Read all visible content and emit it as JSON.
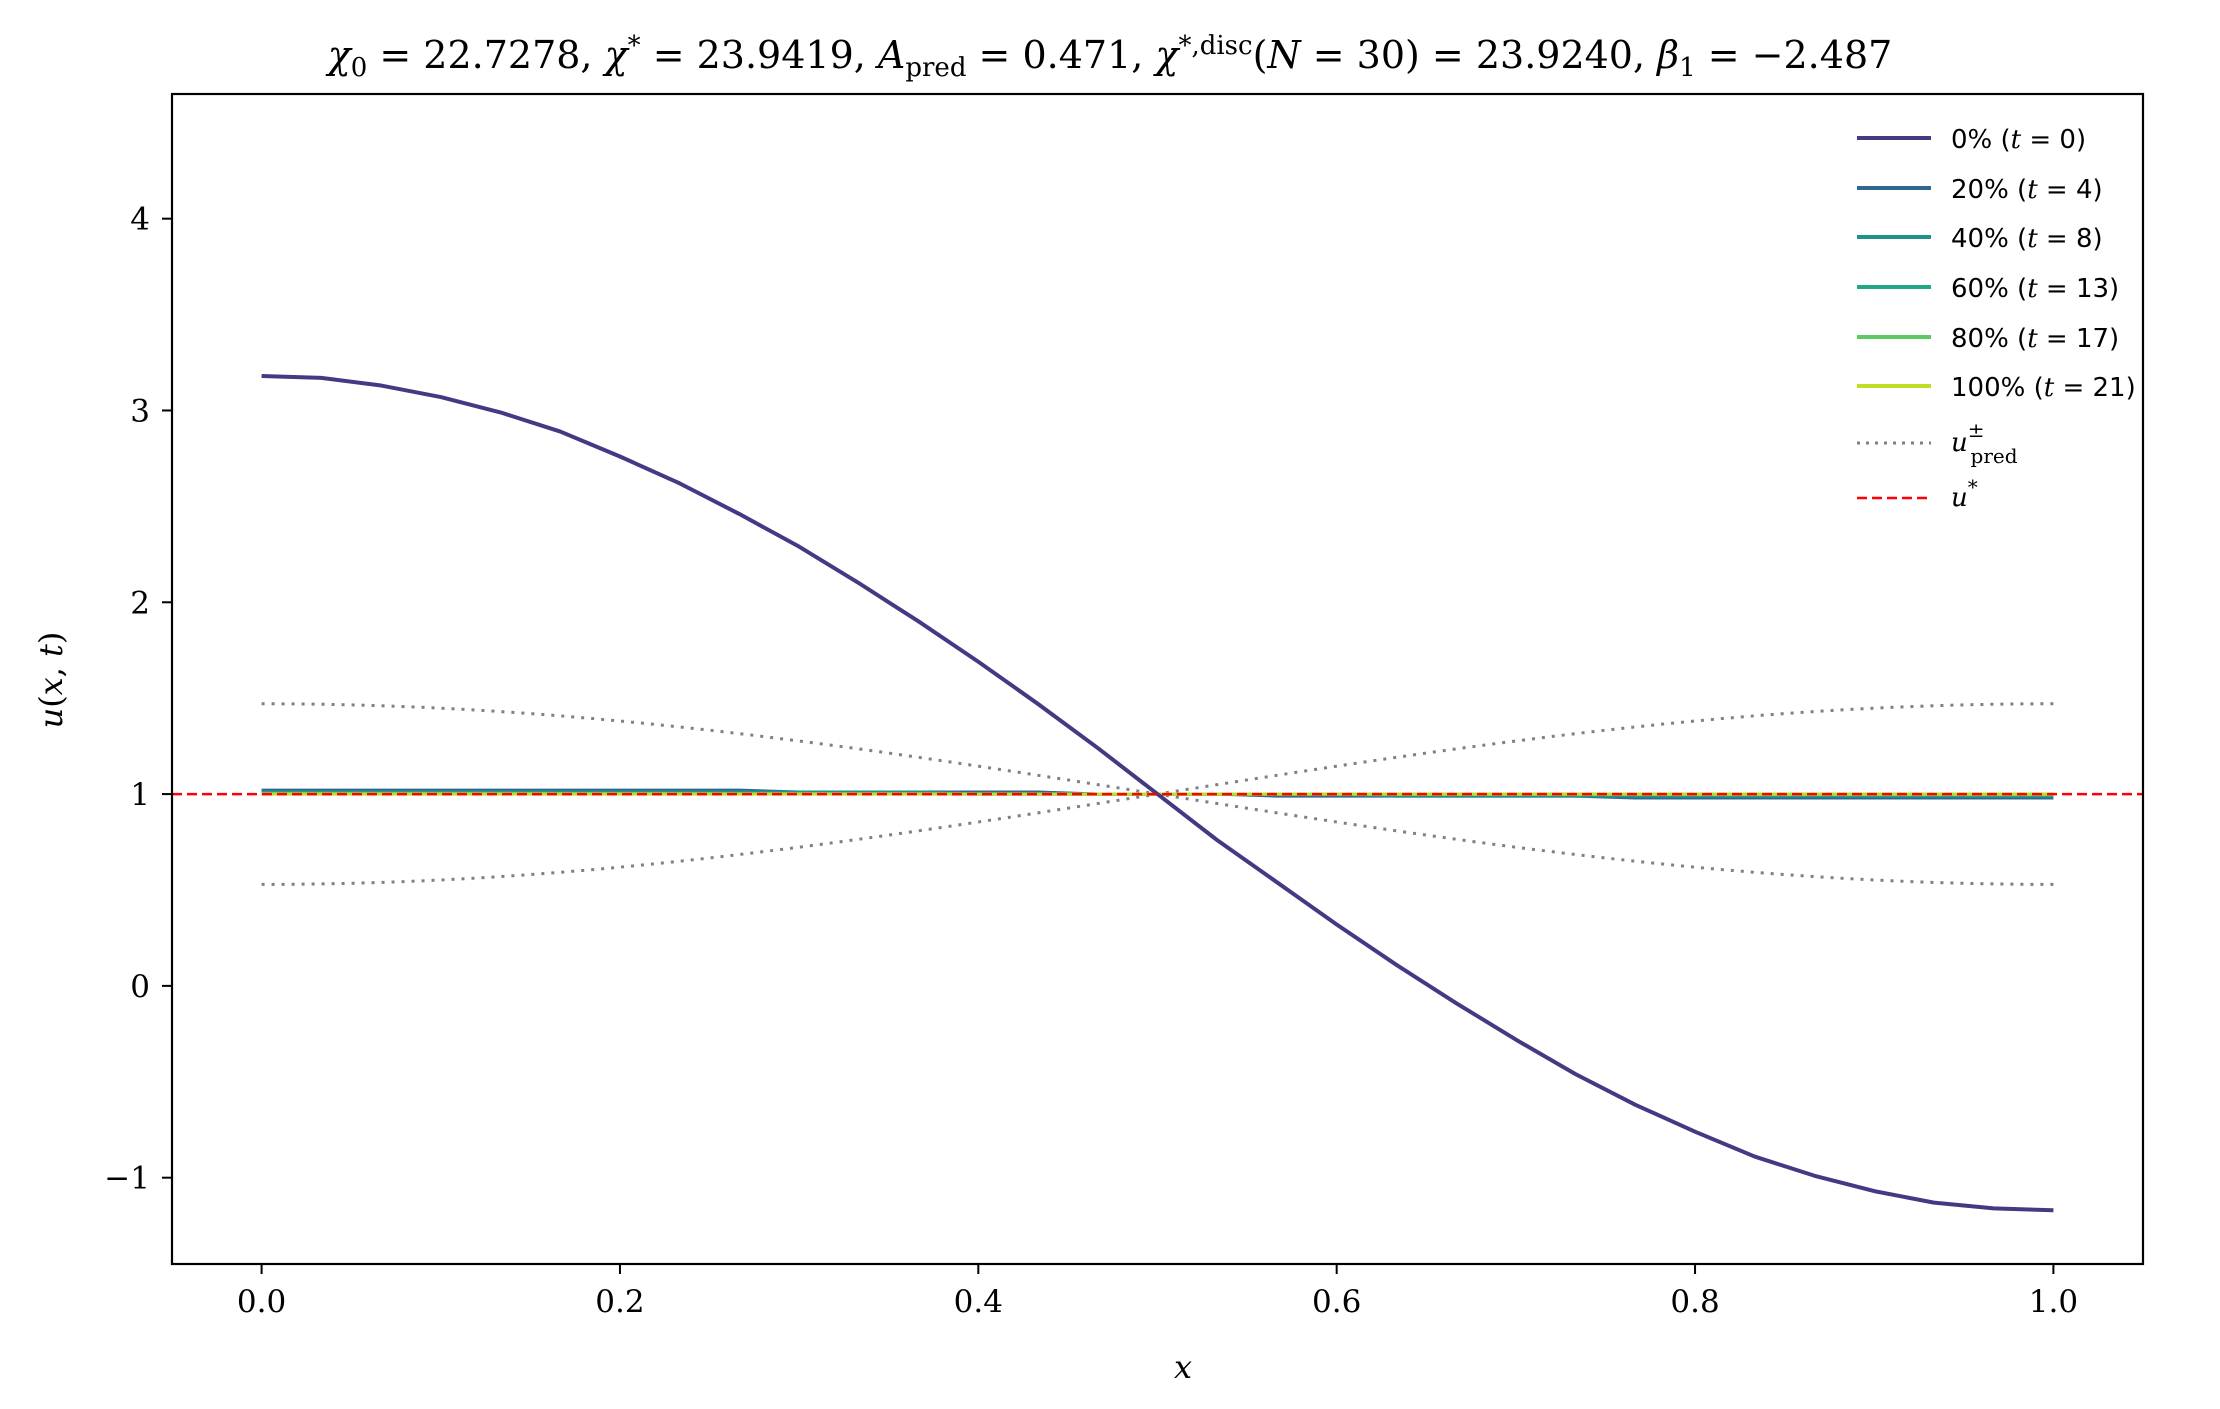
{
  "chart_data": {
    "type": "line",
    "title": "χ₀ = 22.7278,  χ* = 23.9419,  A_pred = 0.471,  χ*,disc(N = 30) = 23.9240,  β₁ = −2.487",
    "xlabel": "x",
    "ylabel": "u(x, t)",
    "xlim": [
      -0.05,
      1.05
    ],
    "ylim": [
      -1.45,
      4.65
    ],
    "xticks": [
      "0.0",
      "0.2",
      "0.4",
      "0.6",
      "0.8",
      "1.0"
    ],
    "yticks": [
      "−1",
      "0",
      "1",
      "2",
      "3",
      "4"
    ],
    "grid": false,
    "legend_position": "top-right",
    "x": [
      0.0,
      0.0333,
      0.0667,
      0.1,
      0.1333,
      0.1667,
      0.2,
      0.2333,
      0.2667,
      0.3,
      0.3333,
      0.3667,
      0.4,
      0.4333,
      0.4667,
      0.5,
      0.5333,
      0.5667,
      0.6,
      0.6333,
      0.6667,
      0.7,
      0.7333,
      0.7667,
      0.8,
      0.8333,
      0.8667,
      0.9,
      0.9333,
      0.9667,
      1.0
    ],
    "series": [
      {
        "name": "0% (t = 0)",
        "color": "#443983",
        "style": "solid",
        "values": [
          3.18,
          3.17,
          3.13,
          3.07,
          2.99,
          2.89,
          2.76,
          2.62,
          2.46,
          2.29,
          2.1,
          1.9,
          1.69,
          1.47,
          1.24,
          1.0,
          0.76,
          0.54,
          0.32,
          0.11,
          -0.09,
          -0.28,
          -0.46,
          -0.62,
          -0.76,
          -0.89,
          -0.99,
          -1.07,
          -1.13,
          -1.16,
          -1.17
        ]
      },
      {
        "name": "20% (t = 4)",
        "color": "#31688e",
        "style": "solid",
        "values": [
          1.02,
          1.02,
          1.02,
          1.02,
          1.02,
          1.02,
          1.02,
          1.02,
          1.02,
          1.01,
          1.01,
          1.01,
          1.01,
          1.01,
          1.0,
          1.0,
          1.0,
          0.99,
          0.99,
          0.99,
          0.99,
          0.99,
          0.99,
          0.98,
          0.98,
          0.98,
          0.98,
          0.98,
          0.98,
          0.98,
          0.98
        ]
      },
      {
        "name": "40% (t = 8)",
        "color": "#21918c",
        "style": "solid",
        "values": [
          1.01,
          1.01,
          1.01,
          1.01,
          1.01,
          1.01,
          1.01,
          1.01,
          1.01,
          1.01,
          1.01,
          1.01,
          1.0,
          1.0,
          1.0,
          1.0,
          1.0,
          1.0,
          1.0,
          0.99,
          0.99,
          0.99,
          0.99,
          0.99,
          0.99,
          0.99,
          0.99,
          0.99,
          0.99,
          0.99,
          0.99
        ]
      },
      {
        "name": "60% (t = 13)",
        "color": "#22a884",
        "style": "solid",
        "values": [
          1.005,
          1.005,
          1.005,
          1.005,
          1.005,
          1.004,
          1.004,
          1.004,
          1.003,
          1.003,
          1.002,
          1.002,
          1.001,
          1.001,
          1.0,
          1.0,
          1.0,
          0.999,
          0.999,
          0.998,
          0.998,
          0.997,
          0.997,
          0.997,
          0.996,
          0.996,
          0.996,
          0.995,
          0.995,
          0.995,
          0.995
        ]
      },
      {
        "name": "80% (t = 17)",
        "color": "#5ec962",
        "style": "solid",
        "values": [
          1.002,
          1.002,
          1.002,
          1.002,
          1.002,
          1.002,
          1.002,
          1.002,
          1.001,
          1.001,
          1.001,
          1.001,
          1.0,
          1.0,
          1.0,
          1.0,
          1.0,
          1.0,
          1.0,
          0.999,
          0.999,
          0.999,
          0.999,
          0.999,
          0.998,
          0.998,
          0.998,
          0.998,
          0.998,
          0.998,
          0.998
        ]
      },
      {
        "name": "100% (t = 21)",
        "color": "#bddf26",
        "style": "solid",
        "values": [
          1.0,
          1.0,
          1.0,
          1.0,
          1.0,
          1.0,
          1.0,
          1.0,
          1.0,
          1.0,
          1.0,
          1.0,
          1.0,
          1.0,
          1.0,
          1.0,
          1.0,
          1.0,
          1.0,
          1.0,
          1.0,
          1.0,
          1.0,
          1.0,
          1.0,
          1.0,
          1.0,
          1.0,
          1.0,
          1.0,
          1.0
        ]
      }
    ],
    "reference_curves": [
      {
        "name": "u±pred",
        "color": "#808080",
        "style": "dotted",
        "amplitude": 0.471,
        "center": 1.0,
        "shape": "cos(pi x)"
      },
      {
        "name": "u*",
        "color": "#ff0000",
        "style": "dashed",
        "value": 1.0
      }
    ]
  }
}
